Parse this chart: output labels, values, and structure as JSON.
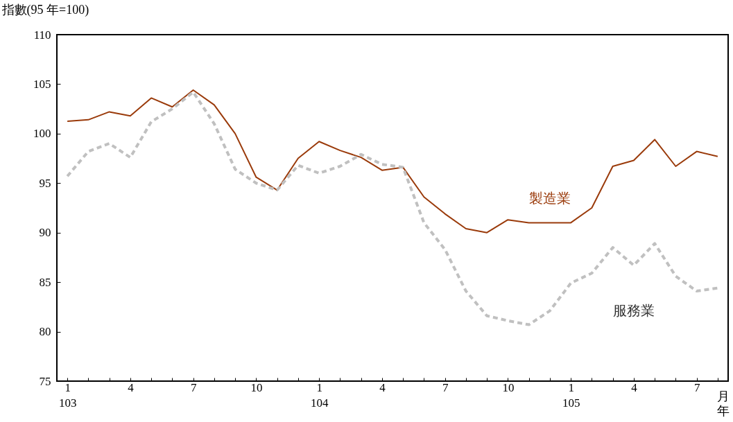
{
  "chart_data": {
    "type": "line",
    "ylabel": "指數(95 年=100)",
    "categories": [
      "1\n103",
      null,
      null,
      "4",
      null,
      null,
      "7",
      null,
      null,
      "10",
      null,
      null,
      "1\n104",
      null,
      null,
      "4",
      null,
      null,
      "7",
      null,
      null,
      "10",
      null,
      null,
      "1\n105",
      null,
      null,
      "4",
      null,
      null,
      "7",
      null
    ],
    "series": [
      {
        "name": "製造業",
        "color": "#9a3a0a",
        "line_style": "solid",
        "values": [
          101.25,
          101.4,
          102.2,
          101.8,
          103.6,
          102.7,
          104.4,
          102.9,
          100.0,
          95.6,
          94.3,
          97.5,
          99.2,
          98.3,
          97.6,
          96.3,
          96.6,
          93.6,
          91.9,
          90.4,
          90.0,
          91.3,
          91.0,
          91.0,
          91.0,
          92.5,
          96.7,
          97.3,
          99.4,
          96.7,
          98.2,
          97.7
        ]
      },
      {
        "name": "服務業",
        "color": "#c0c0c0",
        "line_style": "dashed",
        "values": [
          95.7,
          98.2,
          99.0,
          97.6,
          101.2,
          102.5,
          104.2,
          101.0,
          96.4,
          95.0,
          94.3,
          96.8,
          96.0,
          96.7,
          97.9,
          96.9,
          96.6,
          91.0,
          88.3,
          84.1,
          81.6,
          81.1,
          80.7,
          82.1,
          84.9,
          85.9,
          88.5,
          86.7,
          88.9,
          85.6,
          84.1,
          84.4
        ]
      }
    ],
    "ylim": [
      75,
      110
    ],
    "yticks": [
      75,
      80,
      85,
      90,
      95,
      100,
      105,
      110
    ],
    "grid": false,
    "legend": false,
    "marker": "none",
    "annotations": [
      "月",
      "年"
    ]
  }
}
